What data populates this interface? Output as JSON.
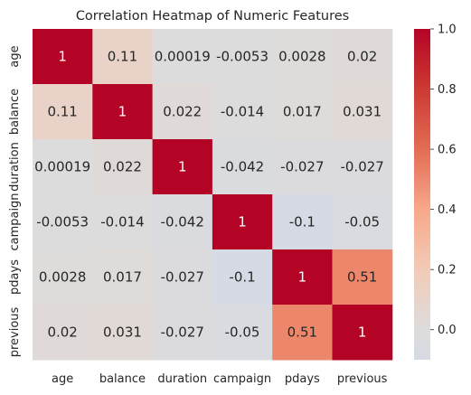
{
  "chart_data": {
    "type": "heatmap",
    "title": "Correlation Heatmap of Numeric Features",
    "x_labels": [
      "age",
      "balance",
      "duration",
      "campaign",
      "pdays",
      "previous"
    ],
    "y_labels": [
      "age",
      "balance",
      "duration",
      "campaign",
      "pdays",
      "previous"
    ],
    "values": [
      [
        1,
        0.11,
        0.00019,
        -0.0053,
        0.0028,
        0.02
      ],
      [
        0.11,
        1,
        0.022,
        -0.014,
        0.017,
        0.031
      ],
      [
        0.00019,
        0.022,
        1,
        -0.042,
        -0.027,
        -0.027
      ],
      [
        -0.0053,
        -0.014,
        -0.042,
        1,
        -0.1,
        -0.05
      ],
      [
        0.0028,
        0.017,
        -0.027,
        -0.1,
        1,
        0.51
      ],
      [
        0.02,
        0.031,
        -0.027,
        -0.05,
        0.51,
        1
      ]
    ],
    "value_labels": [
      [
        "1",
        "0.11",
        "0.00019",
        "-0.0053",
        "0.0028",
        "0.02"
      ],
      [
        "0.11",
        "1",
        "0.022",
        "-0.014",
        "0.017",
        "0.031"
      ],
      [
        "0.00019",
        "0.022",
        "1",
        "-0.042",
        "-0.027",
        "-0.027"
      ],
      [
        "-0.0053",
        "-0.014",
        "-0.042",
        "1",
        "-0.1",
        "-0.05"
      ],
      [
        "0.0028",
        "0.017",
        "-0.027",
        "-0.1",
        "1",
        "0.51"
      ],
      [
        "0.02",
        "0.031",
        "-0.027",
        "-0.05",
        "0.51",
        "1"
      ]
    ],
    "colorbar": {
      "colormap": "coolwarm",
      "center": 0,
      "range": [
        -0.1,
        1.0
      ],
      "ticks": [
        0.0,
        0.2,
        0.4,
        0.6,
        0.8,
        1.0
      ],
      "tick_labels": [
        "0.0",
        "0.2",
        "0.4",
        "0.6",
        "0.8",
        "1.0"
      ]
    },
    "colors": {
      "negative_end": "#3b4cc0",
      "center": "#dddcdc",
      "positive_end": "#b40426"
    },
    "grid": false,
    "legend": "colorbar-right"
  }
}
